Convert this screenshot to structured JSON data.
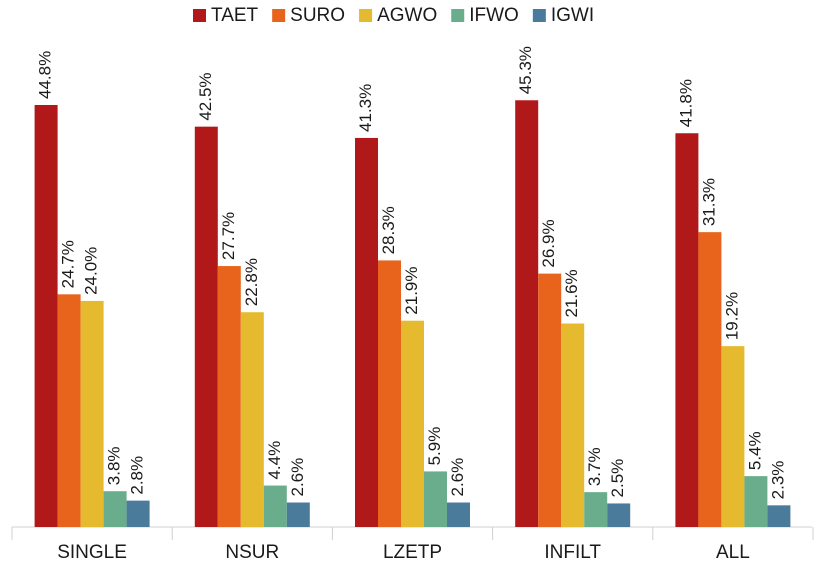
{
  "chart_data": {
    "type": "bar",
    "categories": [
      "SINGLE",
      "NSUR",
      "LZETP",
      "INFILT",
      "ALL"
    ],
    "series": [
      {
        "name": "TAET",
        "color": "#b0181a",
        "values": [
          44.8,
          42.5,
          41.3,
          45.3,
          41.8
        ],
        "value_labels": [
          "44.8%",
          "42.5%",
          "41.3%",
          "45.3%",
          "41.8%"
        ]
      },
      {
        "name": "SURO",
        "color": "#e8641c",
        "values": [
          24.7,
          27.7,
          28.3,
          26.9,
          31.3
        ],
        "value_labels": [
          "24.7%",
          "27.7%",
          "28.3%",
          "26.9%",
          "31.3%"
        ]
      },
      {
        "name": "AGWO",
        "color": "#e5ba2e",
        "values": [
          24.0,
          22.8,
          21.9,
          21.6,
          19.2
        ],
        "value_labels": [
          "24.0%",
          "22.8%",
          "21.9%",
          "21.6%",
          "19.2%"
        ]
      },
      {
        "name": "IFWO",
        "color": "#6aad8c",
        "values": [
          3.8,
          4.4,
          5.9,
          3.7,
          5.4
        ],
        "value_labels": [
          "3.8%",
          "4.4%",
          "5.9%",
          "3.7%",
          "5.4%"
        ]
      },
      {
        "name": "IGWI",
        "color": "#4a7b9a",
        "values": [
          2.8,
          2.6,
          2.6,
          2.5,
          2.3
        ],
        "value_labels": [
          "2.8%",
          "2.6%",
          "2.6%",
          "2.5%",
          "2.3%"
        ]
      }
    ],
    "ylim": [
      0,
      50
    ]
  }
}
